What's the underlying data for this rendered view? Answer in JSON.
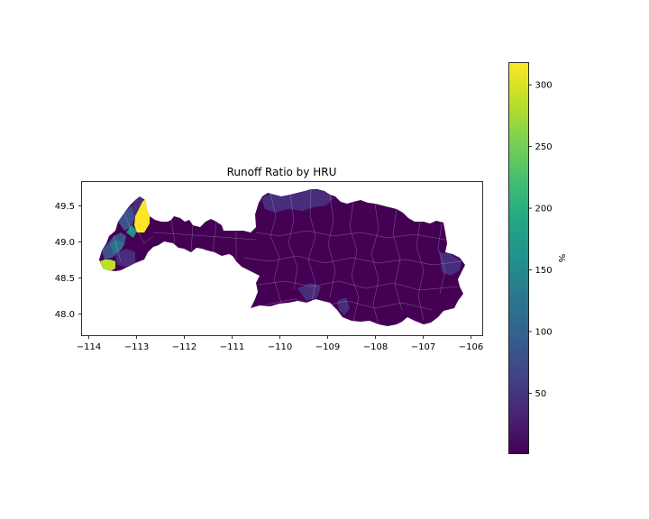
{
  "title": "Runoff Ratio by HRU",
  "x_ticks": [
    "−114",
    "−113",
    "−112",
    "−111",
    "−110",
    "−109",
    "−108",
    "−107",
    "−106"
  ],
  "y_ticks": [
    "48.0",
    "48.5",
    "49.0",
    "49.5"
  ],
  "colorbar": {
    "label": "%",
    "ticks": [
      "50",
      "100",
      "150",
      "200",
      "250",
      "300"
    ],
    "tick_values": [
      50,
      100,
      150,
      200,
      250,
      300
    ],
    "range": [
      1,
      318
    ],
    "colormap": "viridis"
  },
  "colors": {
    "base": "#440154",
    "low": "#472d7b",
    "mid_blue": "#3b528b",
    "teal": "#2c728e",
    "teal_green": "#21918c",
    "yellow_green": "#bddf26",
    "yellow": "#fde725"
  }
}
